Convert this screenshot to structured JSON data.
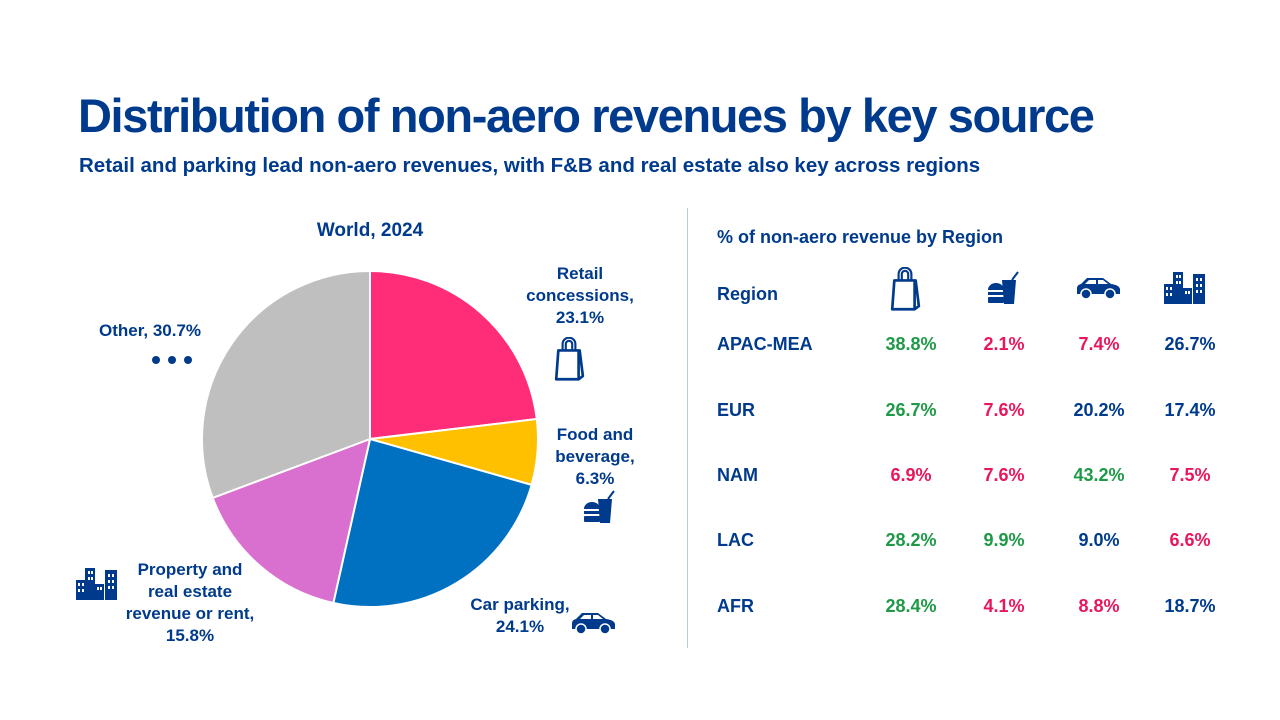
{
  "title": "Distribution of non-aero revenues by key source",
  "subtitle": "Retail and parking lead non-aero revenues, with F&B and real estate also key across regions",
  "colors": {
    "navy": "#003A8C",
    "green": "#1E9A47",
    "pink": "#E8175D"
  },
  "chart_data": {
    "type": "pie",
    "title": "World, 2024",
    "slices": [
      {
        "label": "Retail concessions, 23.1%",
        "name": "Retail concessions",
        "value": 23.1,
        "color": "#FF2D78",
        "icon": "shopping-bag-icon"
      },
      {
        "label": "Food and beverage, 6.3%",
        "name": "Food and beverage",
        "value": 6.3,
        "color": "#FFC000",
        "icon": "burger-drink-icon"
      },
      {
        "label": "Car parking, 24.1%",
        "name": "Car parking",
        "value": 24.1,
        "color": "#0070C0",
        "icon": "car-icon"
      },
      {
        "label": "Property and real estate revenue or rent, 15.8%",
        "name": "Property and real estate revenue or rent",
        "value": 15.8,
        "color": "#D970CF",
        "icon": "buildings-icon"
      },
      {
        "label": "Other, 30.7%",
        "name": "Other",
        "value": 30.7,
        "color": "#BFBFBF",
        "icon": "ellipsis-icon"
      }
    ]
  },
  "table": {
    "title": "% of non-aero revenue by Region",
    "header": "Region",
    "column_icons": [
      "shopping-bag-icon",
      "burger-drink-icon",
      "car-icon",
      "buildings-icon"
    ],
    "rows": [
      {
        "region": "APAC-MEA",
        "values": [
          "38.8%",
          "2.1%",
          "7.4%",
          "26.7%"
        ],
        "colors": [
          "green",
          "pink",
          "pink",
          "navy"
        ]
      },
      {
        "region": "EUR",
        "values": [
          "26.7%",
          "7.6%",
          "20.2%",
          "17.4%"
        ],
        "colors": [
          "green",
          "pink",
          "navy",
          "navy"
        ]
      },
      {
        "region": "NAM",
        "values": [
          "6.9%",
          "7.6%",
          "43.2%",
          "7.5%"
        ],
        "colors": [
          "pink",
          "pink",
          "green",
          "pink"
        ]
      },
      {
        "region": "LAC",
        "values": [
          "28.2%",
          "9.9%",
          "9.0%",
          "6.6%"
        ],
        "colors": [
          "green",
          "green",
          "navy",
          "pink"
        ]
      },
      {
        "region": "AFR",
        "values": [
          "28.4%",
          "4.1%",
          "8.8%",
          "18.7%"
        ],
        "colors": [
          "green",
          "pink",
          "pink",
          "navy"
        ]
      }
    ]
  }
}
